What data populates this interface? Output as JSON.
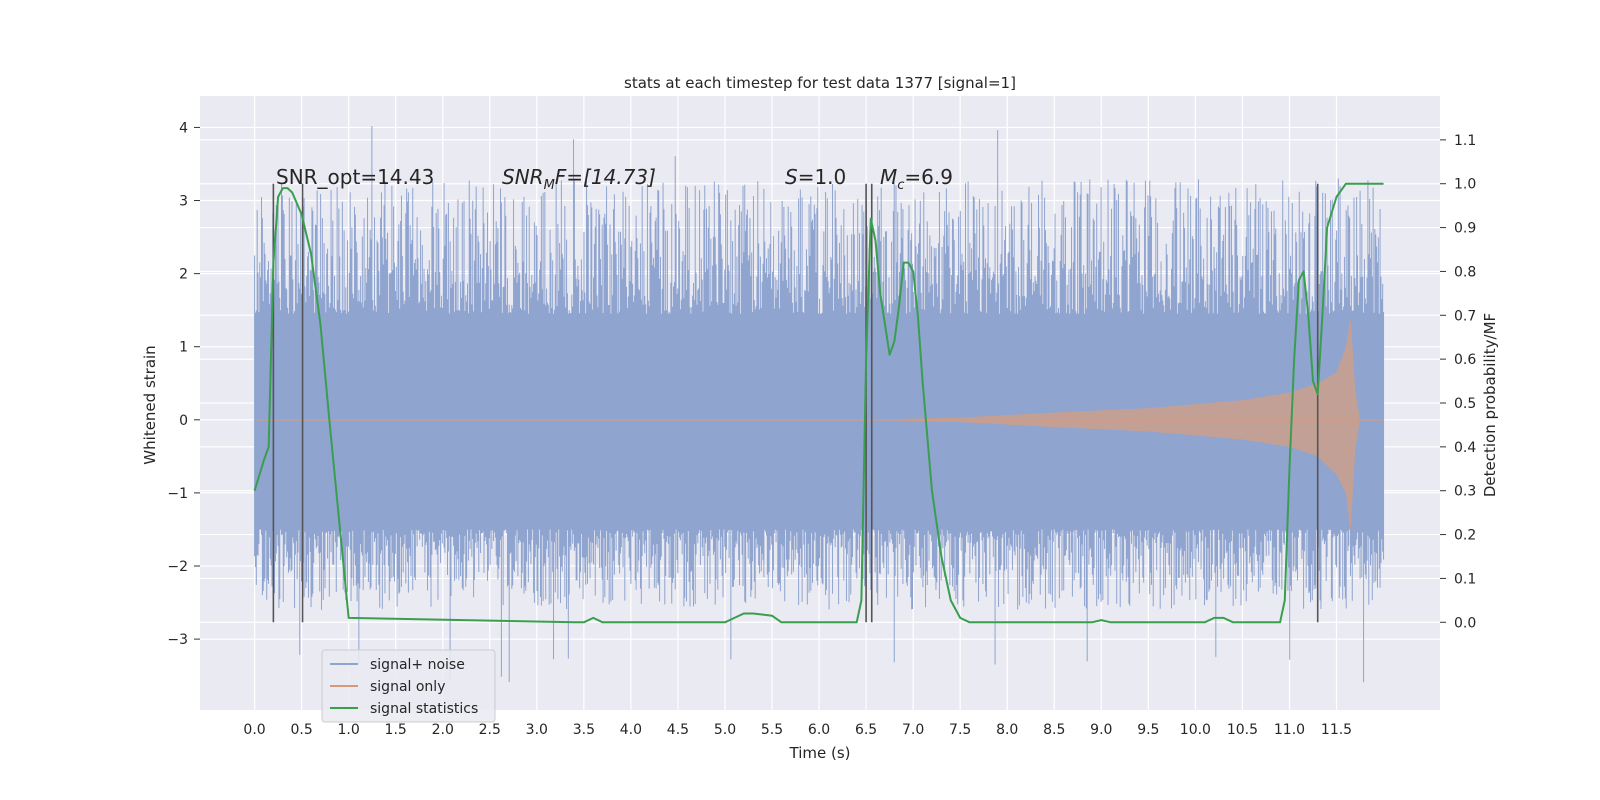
{
  "chart_data": {
    "type": "line",
    "title": "stats at each timestep for test data 1377 [signal=1]",
    "xlabel": "Time (s)",
    "ylabel": "Whitened strain",
    "ylabel_right": "Detection probability/MF",
    "xlim": [
      -0.58,
      12.6
    ],
    "ylim": [
      -3.97,
      4.43
    ],
    "ylim_right": [
      -0.2,
      1.2
    ],
    "x_ticks": [
      "0.0",
      "0.5",
      "1.0",
      "1.5",
      "2.0",
      "2.5",
      "3.0",
      "3.5",
      "4.0",
      "4.5",
      "5.0",
      "5.5",
      "6.0",
      "6.5",
      "7.0",
      "7.5",
      "8.0",
      "8.5",
      "9.0",
      "9.5",
      "10.0",
      "10.5",
      "11.0",
      "11.5"
    ],
    "y_ticks": [
      "4",
      "3",
      "2",
      "1",
      "0",
      "−1",
      "−2",
      "−3"
    ],
    "y_ticks_right": [
      "0.0",
      "0.1",
      "0.2",
      "0.3",
      "0.4",
      "0.5",
      "0.6",
      "0.7",
      "0.8",
      "0.9",
      "1.0",
      "1.1"
    ],
    "grid": true,
    "legend_placement": "lower-left",
    "legend": [
      "signal+ noise",
      "signal only",
      "signal statistics"
    ],
    "colors": {
      "noise": "#8fa4cf",
      "signal": "#d9977c",
      "signal_fill": "#c9a08f",
      "stats": "#3a9e4f",
      "background": "#eaeaf2",
      "grid": "#ffffff",
      "vlines": "#555555"
    },
    "annotations": {
      "snr_opt": "SNR_opt=14.43",
      "snr_mf_base": "SNR",
      "snr_mf_sub": "M",
      "snr_mf_rest": "F=[14.73]",
      "s_italic": "S",
      "s_rest": "=1.0",
      "mc_base": "M",
      "mc_sub": "c",
      "mc_rest": "=6.9"
    },
    "vertical_lines_x": [
      0.2,
      0.51,
      6.5,
      6.56,
      11.3
    ],
    "series": [
      {
        "name": "signal+ noise",
        "axis": "left",
        "x_range": [
          0.0,
          12.0
        ],
        "core_band": [
          -1.5,
          1.45
        ],
        "typical_peak": [
          -2.6,
          3.3
        ],
        "extremes": [
          -3.6,
          4.1
        ]
      },
      {
        "name": "signal only",
        "axis": "left",
        "envelope": {
          "x": [
            0.0,
            6.5,
            7.5,
            8.5,
            9.5,
            10.5,
            11.0,
            11.3,
            11.5,
            11.6,
            11.65,
            11.7,
            11.75,
            12.0
          ],
          "upper": [
            0.0,
            0.0,
            0.03,
            0.1,
            0.16,
            0.27,
            0.37,
            0.5,
            0.65,
            1.0,
            1.4,
            0.4,
            0.0,
            0.0
          ],
          "lower": [
            0.0,
            0.0,
            -0.03,
            -0.1,
            -0.16,
            -0.27,
            -0.37,
            -0.5,
            -0.75,
            -1.0,
            -1.55,
            -0.4,
            0.0,
            0.0
          ]
        }
      },
      {
        "name": "signal statistics",
        "axis": "right",
        "x": [
          0.0,
          0.1,
          0.15,
          0.2,
          0.25,
          0.3,
          0.35,
          0.4,
          0.5,
          0.6,
          0.7,
          0.8,
          0.9,
          1.0,
          3.4,
          3.5,
          3.6,
          3.7,
          5.0,
          5.1,
          5.2,
          5.3,
          5.5,
          5.6,
          6.4,
          6.45,
          6.5,
          6.55,
          6.6,
          6.65,
          6.7,
          6.75,
          6.8,
          6.85,
          6.9,
          6.95,
          7.0,
          7.05,
          7.1,
          7.2,
          7.3,
          7.4,
          7.5,
          7.6,
          8.0,
          8.9,
          9.0,
          9.1,
          10.1,
          10.2,
          10.3,
          10.4,
          10.9,
          10.95,
          11.0,
          11.05,
          11.1,
          11.15,
          11.2,
          11.25,
          11.3,
          11.35,
          11.4,
          11.5,
          11.6,
          11.65,
          11.75,
          11.9,
          12.0
        ],
        "values": [
          0.3,
          0.37,
          0.4,
          0.82,
          0.97,
          0.99,
          0.99,
          0.98,
          0.93,
          0.84,
          0.68,
          0.45,
          0.23,
          0.01,
          0.0,
          0.0,
          0.01,
          0.0,
          0.0,
          0.01,
          0.02,
          0.02,
          0.015,
          0.0,
          0.0,
          0.05,
          0.6,
          0.92,
          0.87,
          0.75,
          0.68,
          0.61,
          0.64,
          0.72,
          0.82,
          0.82,
          0.8,
          0.7,
          0.55,
          0.3,
          0.15,
          0.05,
          0.01,
          0.0,
          0.0,
          0.0,
          0.005,
          0.0,
          0.0,
          0.01,
          0.01,
          0.0,
          0.0,
          0.05,
          0.35,
          0.6,
          0.78,
          0.8,
          0.7,
          0.55,
          0.52,
          0.7,
          0.9,
          0.97,
          1.0,
          1.0,
          1.0,
          1.0,
          1.0
        ]
      }
    ]
  }
}
